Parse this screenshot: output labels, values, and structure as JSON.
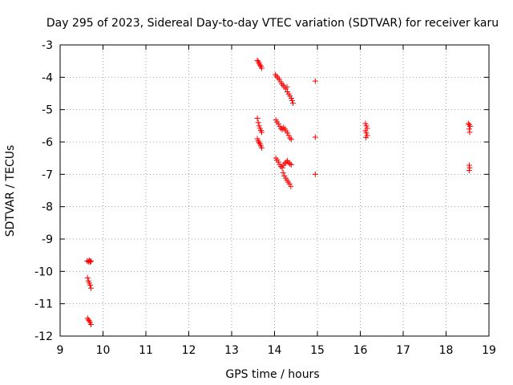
{
  "chart_data": {
    "type": "scatter",
    "title": "Day 295 of 2023, Sidereal Day-to-day VTEC variation (SDTVAR) for receiver karu",
    "xlabel": "GPS time / hours",
    "ylabel": "SDTVAR / TECUs",
    "xlim": [
      9,
      19
    ],
    "ylim": [
      -12,
      -3
    ],
    "xticks": [
      "9",
      "10",
      "11",
      "12",
      "13",
      "14",
      "15",
      "16",
      "17",
      "18",
      "19"
    ],
    "yticks": [
      "-3",
      "-4",
      "-5",
      "-6",
      "-7",
      "-8",
      "-9",
      "-10",
      "-11",
      "-12"
    ],
    "grid": true,
    "marker": "+",
    "series": [
      {
        "name": "SDTVAR",
        "color": "#ff0000",
        "points": [
          [
            9.63,
            -9.68
          ],
          [
            9.66,
            -9.7
          ],
          [
            9.68,
            -9.66
          ],
          [
            9.7,
            -9.71
          ],
          [
            9.72,
            -9.68
          ],
          [
            9.64,
            -10.2
          ],
          [
            9.66,
            -10.3
          ],
          [
            9.68,
            -10.36
          ],
          [
            9.7,
            -10.43
          ],
          [
            9.72,
            -10.52
          ],
          [
            9.64,
            -11.45
          ],
          [
            9.66,
            -11.5
          ],
          [
            9.68,
            -11.53
          ],
          [
            9.7,
            -11.58
          ],
          [
            9.72,
            -11.64
          ],
          [
            13.6,
            -3.48
          ],
          [
            13.62,
            -3.52
          ],
          [
            13.64,
            -3.57
          ],
          [
            13.66,
            -3.62
          ],
          [
            13.68,
            -3.66
          ],
          [
            13.7,
            -3.72
          ],
          [
            13.6,
            -5.27
          ],
          [
            13.62,
            -5.4
          ],
          [
            13.64,
            -5.5
          ],
          [
            13.66,
            -5.58
          ],
          [
            13.68,
            -5.64
          ],
          [
            13.7,
            -5.7
          ],
          [
            13.6,
            -5.9
          ],
          [
            13.62,
            -5.97
          ],
          [
            13.64,
            -6.02
          ],
          [
            13.66,
            -6.06
          ],
          [
            13.68,
            -6.12
          ],
          [
            13.7,
            -6.18
          ],
          [
            14.02,
            -3.92
          ],
          [
            14.05,
            -3.97
          ],
          [
            14.08,
            -4.02
          ],
          [
            14.11,
            -4.07
          ],
          [
            14.14,
            -4.14
          ],
          [
            14.17,
            -4.2
          ],
          [
            14.2,
            -4.25
          ],
          [
            14.23,
            -4.3
          ],
          [
            14.26,
            -4.36
          ],
          [
            14.29,
            -4.3
          ],
          [
            14.3,
            -4.45
          ],
          [
            14.33,
            -4.52
          ],
          [
            14.36,
            -4.58
          ],
          [
            14.39,
            -4.65
          ],
          [
            14.41,
            -4.72
          ],
          [
            14.43,
            -4.8
          ],
          [
            14.03,
            -5.32
          ],
          [
            14.06,
            -5.38
          ],
          [
            14.09,
            -5.44
          ],
          [
            14.12,
            -5.52
          ],
          [
            14.15,
            -5.58
          ],
          [
            14.18,
            -5.62
          ],
          [
            14.21,
            -5.55
          ],
          [
            14.24,
            -5.6
          ],
          [
            14.27,
            -5.66
          ],
          [
            14.3,
            -5.72
          ],
          [
            14.33,
            -5.8
          ],
          [
            14.36,
            -5.88
          ],
          [
            14.39,
            -5.92
          ],
          [
            14.03,
            -6.5
          ],
          [
            14.06,
            -6.56
          ],
          [
            14.09,
            -6.62
          ],
          [
            14.12,
            -6.7
          ],
          [
            14.15,
            -6.76
          ],
          [
            14.18,
            -6.8
          ],
          [
            14.21,
            -6.72
          ],
          [
            14.24,
            -6.66
          ],
          [
            14.27,
            -6.62
          ],
          [
            14.3,
            -6.58
          ],
          [
            14.33,
            -6.64
          ],
          [
            14.36,
            -6.68
          ],
          [
            14.39,
            -6.7
          ],
          [
            14.2,
            -6.95
          ],
          [
            14.23,
            -7.05
          ],
          [
            14.26,
            -7.12
          ],
          [
            14.29,
            -7.18
          ],
          [
            14.32,
            -7.24
          ],
          [
            14.35,
            -7.3
          ],
          [
            14.38,
            -7.37
          ],
          [
            14.95,
            -4.12
          ],
          [
            14.95,
            -5.85
          ],
          [
            14.95,
            -7.0
          ],
          [
            16.12,
            -5.43
          ],
          [
            16.14,
            -5.5
          ],
          [
            16.16,
            -5.58
          ],
          [
            16.12,
            -5.65
          ],
          [
            16.14,
            -5.72
          ],
          [
            16.16,
            -5.8
          ],
          [
            16.13,
            -5.86
          ],
          [
            18.52,
            -5.43
          ],
          [
            18.54,
            -5.47
          ],
          [
            18.56,
            -5.52
          ],
          [
            18.54,
            -5.6
          ],
          [
            18.55,
            -5.7
          ],
          [
            18.54,
            -6.72
          ],
          [
            18.55,
            -6.8
          ],
          [
            18.54,
            -6.88
          ]
        ]
      }
    ]
  }
}
